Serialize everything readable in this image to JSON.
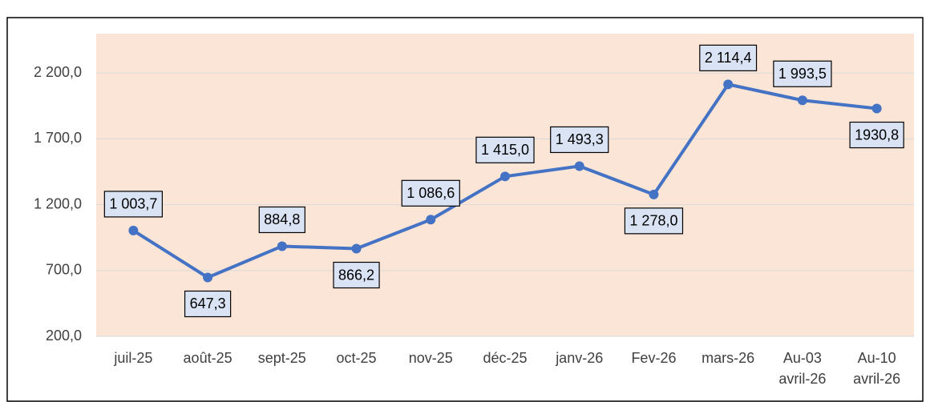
{
  "chart_data": {
    "type": "line",
    "categories": [
      "juil-25",
      "août-25",
      "sept-25",
      "oct-25",
      "nov-25",
      "déc-25",
      "janv-26",
      "Fev-26",
      "mars-26",
      "Au-03\navril-26",
      "Au-10\navril-26"
    ],
    "series": [
      {
        "color": "#4472c4",
        "values": [
          1003.7,
          647.3,
          884.8,
          866.2,
          1086.6,
          1415.0,
          1493.3,
          1278.0,
          2114.4,
          1993.5,
          1930.8
        ],
        "value_labels": [
          "1 003,7",
          "647,3",
          "884,8",
          "866,2",
          "1 086,6",
          "1 415,0",
          "1 493,3",
          "1 278,0",
          "2 114,4",
          "1 993,5",
          "1930,8"
        ]
      }
    ],
    "ylim": [
      200,
      2500
    ],
    "yticks": [
      {
        "value": 200,
        "label": "200,0"
      },
      {
        "value": 700,
        "label": "700,0"
      },
      {
        "value": 1200,
        "label": "1 200,0"
      },
      {
        "value": 1700,
        "label": "1 700,0"
      },
      {
        "value": 2200,
        "label": "2 200,0"
      }
    ],
    "grid": true,
    "plot_background": "#fbe5d6"
  }
}
